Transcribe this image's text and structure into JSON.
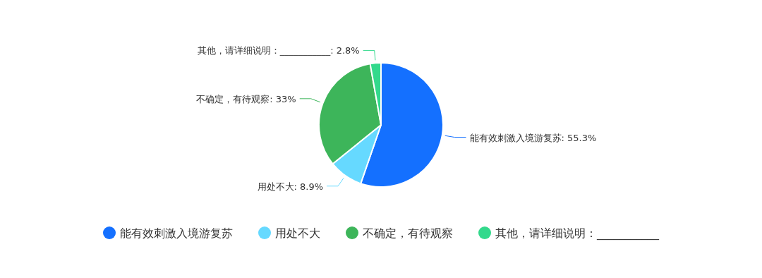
{
  "chart_data": {
    "type": "pie",
    "categories": [
      "能有效刺激入境游复苏",
      "用处不大",
      "不确定，有待观察",
      "其他，请详细说明：___________"
    ],
    "values": [
      55.3,
      8.9,
      33,
      2.8
    ],
    "colors": [
      "#1470ff",
      "#66d9ff",
      "#3db55a",
      "#33d98c"
    ],
    "value_labels": [
      ": 55.3%",
      ": 8.9%",
      ": 33%",
      ": 2.8%"
    ],
    "legend": "bottom"
  }
}
